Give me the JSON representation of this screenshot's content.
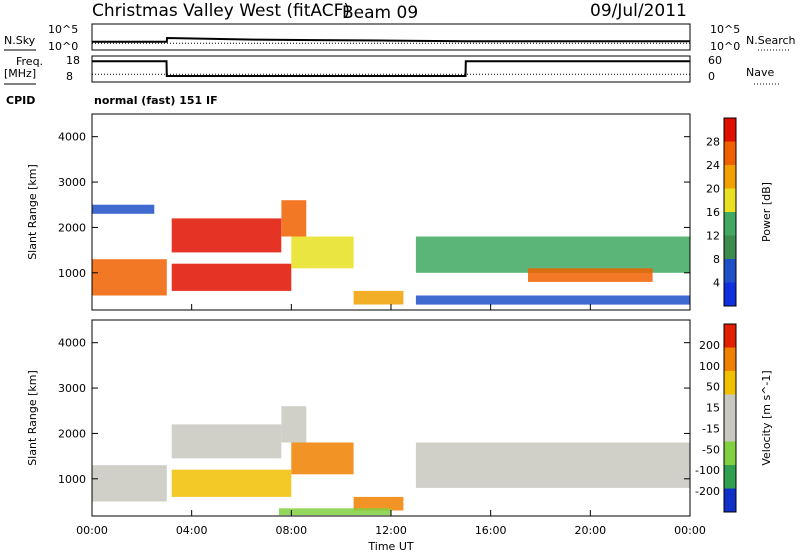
{
  "header": {
    "title": "Christmas Valley West (fitACF)",
    "beam": "Beam 09",
    "date": "09/Jul/2011"
  },
  "strip_labels": {
    "nsky": "N.Sky",
    "nsearch": "N.Search",
    "freq": "Freq.",
    "freq_unit": "[MHz]",
    "nave": "Nave",
    "cpid": "CPID",
    "cpid_value": "normal (fast) 151 IF"
  },
  "strip_ticks": {
    "noise_left": [
      "10^5",
      "10^0"
    ],
    "noise_right": [
      "10^5",
      "10^0"
    ],
    "freq_left": [
      "18",
      "8"
    ],
    "nave_right": [
      "60",
      "0"
    ]
  },
  "colors": {
    "power": [
      "#1030e0",
      "#2050c8",
      "#3c8c50",
      "#40a860",
      "#e8e020",
      "#f0a000",
      "#f06000",
      "#e01000"
    ],
    "velocity": [
      "#1030c8",
      "#30a050",
      "#80d040",
      "#c8c8c0",
      "#c8c8c0",
      "#f0c000",
      "#f08000",
      "#e02000"
    ]
  },
  "chart_data": [
    {
      "type": "line",
      "panel": "noise",
      "ylabel_left": "N.Sky",
      "ylabel_right": "N.Search",
      "x_hours": [
        0,
        3,
        3.01,
        6.5,
        6.51,
        9,
        12,
        15,
        18,
        21,
        24
      ],
      "series": [
        {
          "name": "N.Sky",
          "values": [
            1.6,
            1.6,
            2.3,
            2.0,
            2.0,
            1.9,
            1.8,
            1.7,
            1.7,
            1.7,
            1.7
          ]
        },
        {
          "name": "N.Search",
          "values": [
            1.3,
            1.3,
            1.3,
            1.3,
            1.3,
            1.3,
            1.3,
            1.3,
            1.3,
            1.3,
            1.3
          ]
        }
      ]
    },
    {
      "type": "line",
      "panel": "frequency",
      "ylabel_left": "Freq. [MHz]",
      "ylabel_right": "Nave",
      "ylim_left": [
        8,
        18
      ],
      "ylim_right": [
        0,
        60
      ],
      "x_hours": [
        0,
        2.99,
        3.0,
        14.99,
        15.0,
        24
      ],
      "series": [
        {
          "name": "Freq.",
          "values": [
            16,
            16,
            10.3,
            10.3,
            16,
            16
          ]
        },
        {
          "name": "Nave",
          "values": [
            18,
            18,
            18,
            18,
            18,
            18
          ]
        }
      ]
    },
    {
      "type": "heatmap",
      "panel": "power",
      "ylabel": "Slant Range [km]",
      "colorbar_label": "Power [dB]",
      "colorbar_ticks": [
        "28",
        "24",
        "20",
        "16",
        "12",
        "8",
        "4"
      ],
      "x_range_hours": [
        0,
        24
      ],
      "ylim": [
        180,
        4500
      ],
      "y_ticks": [
        "1000",
        "2000",
        "3000",
        "4000"
      ],
      "bands": [
        {
          "t0": 0,
          "t1": 3,
          "r0": 500,
          "r1": 1300,
          "level": 6
        },
        {
          "t0": 0,
          "t1": 2.5,
          "r0": 2300,
          "r1": 2500,
          "level": 1
        },
        {
          "t0": 3.2,
          "t1": 7.6,
          "r0": 1450,
          "r1": 2200,
          "level": 7
        },
        {
          "t0": 7.6,
          "t1": 8.6,
          "r0": 1800,
          "r1": 2600,
          "level": 6
        },
        {
          "t0": 3.2,
          "t1": 8.0,
          "r0": 600,
          "r1": 1200,
          "level": 7
        },
        {
          "t0": 8.0,
          "t1": 10.5,
          "r0": 1100,
          "r1": 1800,
          "level": 4
        },
        {
          "t0": 10.5,
          "t1": 12.5,
          "r0": 300,
          "r1": 600,
          "level": 5
        },
        {
          "t0": 13.0,
          "t1": 24,
          "r0": 1000,
          "r1": 1800,
          "level": 3
        },
        {
          "t0": 17.5,
          "t1": 22.5,
          "r0": 800,
          "r1": 1100,
          "level": 6
        },
        {
          "t0": 13.0,
          "t1": 24,
          "r0": 300,
          "r1": 500,
          "level": 1
        }
      ]
    },
    {
      "type": "heatmap",
      "panel": "velocity",
      "ylabel": "Slant Range [km]",
      "colorbar_label": "Velocity [m s^-1]",
      "colorbar_ticks": [
        "200",
        "100",
        "50",
        "15",
        "-15",
        "-50",
        "-100",
        "-200"
      ],
      "x_range_hours": [
        0,
        24
      ],
      "ylim": [
        180,
        4500
      ],
      "y_ticks": [
        "1000",
        "2000",
        "3000",
        "4000"
      ],
      "x_ticks": [
        "00:00",
        "04:00",
        "08:00",
        "12:00",
        "16:00",
        "20:00",
        "00:00"
      ],
      "xlabel": "Time UT",
      "bands": [
        {
          "t0": 0,
          "t1": 3,
          "r0": 500,
          "r1": 1300,
          "level": 3
        },
        {
          "t0": 3.2,
          "t1": 7.6,
          "r0": 1450,
          "r1": 2200,
          "level": 3
        },
        {
          "t0": 7.6,
          "t1": 8.6,
          "r0": 1800,
          "r1": 2600,
          "level": 3
        },
        {
          "t0": 3.2,
          "t1": 8.0,
          "r0": 600,
          "r1": 1200,
          "level": 5
        },
        {
          "t0": 8.0,
          "t1": 10.5,
          "r0": 1100,
          "r1": 1800,
          "level": 6
        },
        {
          "t0": 10.5,
          "t1": 12.5,
          "r0": 300,
          "r1": 600,
          "level": 6
        },
        {
          "t0": 13.0,
          "t1": 24,
          "r0": 800,
          "r1": 1800,
          "level": 3
        },
        {
          "t0": 7.5,
          "t1": 12.0,
          "r0": 200,
          "r1": 350,
          "level": 2
        }
      ]
    }
  ]
}
